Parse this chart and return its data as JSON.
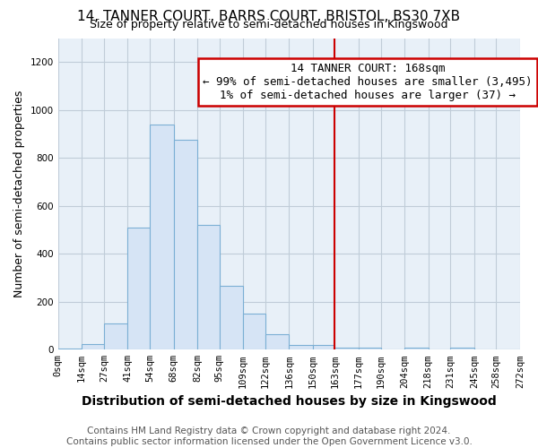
{
  "title": "14, TANNER COURT, BARRS COURT, BRISTOL, BS30 7XB",
  "subtitle": "Size of property relative to semi-detached houses in Kingswood",
  "xlabel": "Distribution of semi-detached houses by size in Kingswood",
  "ylabel": "Number of semi-detached properties",
  "bar_values": [
    5,
    25,
    110,
    510,
    940,
    875,
    520,
    265,
    150,
    65,
    20,
    20,
    10,
    10,
    0,
    10,
    0,
    10,
    0,
    0
  ],
  "bin_edges": [
    0,
    14,
    27,
    41,
    54,
    68,
    82,
    95,
    109,
    122,
    136,
    150,
    163,
    177,
    190,
    204,
    218,
    231,
    245,
    258,
    272
  ],
  "tick_labels": [
    "0sqm",
    "14sqm",
    "27sqm",
    "41sqm",
    "54sqm",
    "68sqm",
    "82sqm",
    "95sqm",
    "109sqm",
    "122sqm",
    "136sqm",
    "150sqm",
    "163sqm",
    "177sqm",
    "190sqm",
    "204sqm",
    "218sqm",
    "231sqm",
    "245sqm",
    "258sqm",
    "272sqm"
  ],
  "bar_color": "#d6e4f5",
  "bar_edge_color": "#7bafd4",
  "vline_x": 163,
  "vline_color": "#cc0000",
  "annotation_line1": "14 TANNER COURT: 168sqm",
  "annotation_line2": "← 99% of semi-detached houses are smaller (3,495)",
  "annotation_line3": "1% of semi-detached houses are larger (37) →",
  "annotation_box_color": "#cc0000",
  "ylim": [
    0,
    1300
  ],
  "yticks": [
    0,
    200,
    400,
    600,
    800,
    1000,
    1200
  ],
  "background_color": "#ffffff",
  "plot_bg_color": "#e8f0f8",
  "grid_color": "#c0ccd8",
  "footer_line1": "Contains HM Land Registry data © Crown copyright and database right 2024.",
  "footer_line2": "Contains public sector information licensed under the Open Government Licence v3.0.",
  "title_fontsize": 11,
  "subtitle_fontsize": 9,
  "xlabel_fontsize": 10,
  "ylabel_fontsize": 9,
  "annotation_fontsize": 9,
  "tick_fontsize": 7.5,
  "footer_fontsize": 7.5
}
